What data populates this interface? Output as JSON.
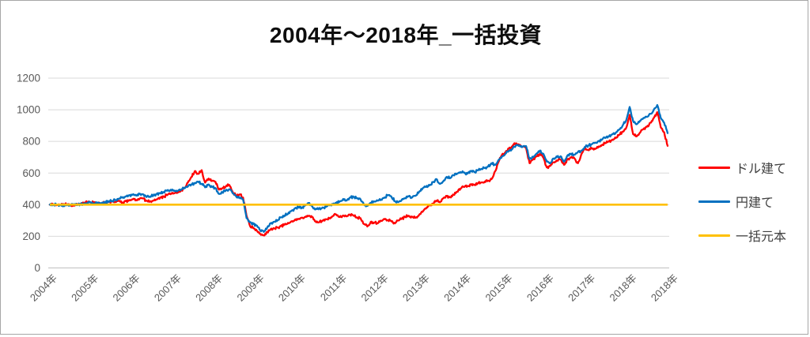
{
  "frame": {
    "background": "#FFFFFF",
    "border_color": "#A6A6A6"
  },
  "chart_data": {
    "type": "line",
    "title": "2004年～2018年_一括投資",
    "x_tick_labels": [
      "2004年",
      "2005年",
      "2006年",
      "2007年",
      "2008年",
      "2009年",
      "2010年",
      "2011年",
      "2012年",
      "2013年",
      "2014年",
      "2015年",
      "2016年",
      "2017年",
      "2018年",
      "2018年"
    ],
    "y_ticks": [
      0,
      200,
      400,
      600,
      800,
      1000,
      1200
    ],
    "ylim": [
      0,
      1200
    ],
    "grid": true,
    "legend_position": "right",
    "colors": {
      "grid": "#D9D9D9",
      "axis_line": "#BFBFBF",
      "tick_label": "#595959",
      "title": "#0D0D0D",
      "legend_label": "#404040"
    },
    "series": [
      {
        "name": "ドル建て",
        "color": "#FF0000",
        "values": [
          400,
          402,
          397,
          399,
          404,
          400,
          396,
          398,
          403,
          407,
          412,
          417,
          412,
          416,
          410,
          406,
          412,
          417,
          421,
          416,
          424,
          414,
          422,
          428,
          433,
          430,
          437,
          440,
          424,
          420,
          426,
          434,
          444,
          452,
          460,
          466,
          472,
          478,
          490,
          505,
          540,
          575,
          612,
          595,
          618,
          540,
          565,
          550,
          545,
          495,
          505,
          515,
          525,
          480,
          455,
          465,
          445,
          330,
          265,
          250,
          235,
          215,
          205,
          225,
          245,
          250,
          255,
          265,
          275,
          285,
          295,
          305,
          310,
          318,
          322,
          330,
          322,
          295,
          288,
          300,
          308,
          315,
          328,
          338,
          322,
          332,
          326,
          336,
          330,
          320,
          315,
          278,
          262,
          292,
          286,
          282,
          298,
          308,
          302,
          294,
          282,
          300,
          312,
          322,
          330,
          324,
          318,
          336,
          355,
          375,
          395,
          405,
          425,
          415,
          440,
          455,
          448,
          462,
          482,
          502,
          512,
          518,
          528,
          524,
          534,
          540,
          546,
          552,
          562,
          610,
          670,
          715,
          730,
          755,
          770,
          788,
          778,
          768,
          758,
          662,
          685,
          705,
          722,
          698,
          635,
          645,
          668,
          678,
          685,
          652,
          688,
          700,
          692,
          662,
          718,
          762,
          745,
          758,
          752,
          768,
          778,
          790,
          800,
          812,
          822,
          842,
          862,
          885,
          968,
          845,
          832,
          855,
          878,
          892,
          918,
          948,
          985,
          890,
          858,
          772
        ]
      },
      {
        "name": "円建て",
        "color": "#0070C0",
        "values": [
          400,
          397,
          401,
          398,
          393,
          397,
          400,
          403,
          397,
          404,
          408,
          414,
          410,
          406,
          413,
          409,
          415,
          420,
          424,
          429,
          438,
          444,
          452,
          460,
          464,
          458,
          468,
          466,
          448,
          452,
          458,
          468,
          474,
          480,
          488,
          494,
          490,
          486,
          494,
          505,
          515,
          528,
          538,
          545,
          532,
          510,
          528,
          512,
          505,
          468,
          478,
          490,
          498,
          472,
          452,
          442,
          432,
          315,
          288,
          278,
          268,
          238,
          228,
          256,
          282,
          292,
          302,
          320,
          332,
          342,
          360,
          376,
          386,
          380,
          396,
          410,
          390,
          370,
          376,
          382,
          386,
          396,
          402,
          410,
          420,
          436,
          426,
          446,
          450,
          440,
          434,
          400,
          392,
          412,
          420,
          425,
          432,
          446,
          460,
          450,
          422,
          416,
          432,
          442,
          452,
          446,
          456,
          482,
          502,
          512,
          522,
          542,
          562,
          532,
          548,
          576,
          568,
          586,
          596,
          606,
          602,
          596,
          612,
          606,
          616,
          626,
          632,
          642,
          662,
          652,
          682,
          705,
          722,
          742,
          752,
          772,
          776,
          766,
          770,
          688,
          702,
          722,
          742,
          722,
          672,
          662,
          692,
          702,
          706,
          672,
          712,
          722,
          716,
          732,
          742,
          765,
          772,
          782,
          792,
          802,
          812,
          822,
          832,
          846,
          856,
          876,
          902,
          932,
          1018,
          928,
          908,
          930,
          948,
          955,
          975,
          1000,
          1030,
          948,
          918,
          852
        ]
      },
      {
        "name": "一括元本",
        "color": "#FFC000",
        "constant_value": 400
      }
    ]
  }
}
